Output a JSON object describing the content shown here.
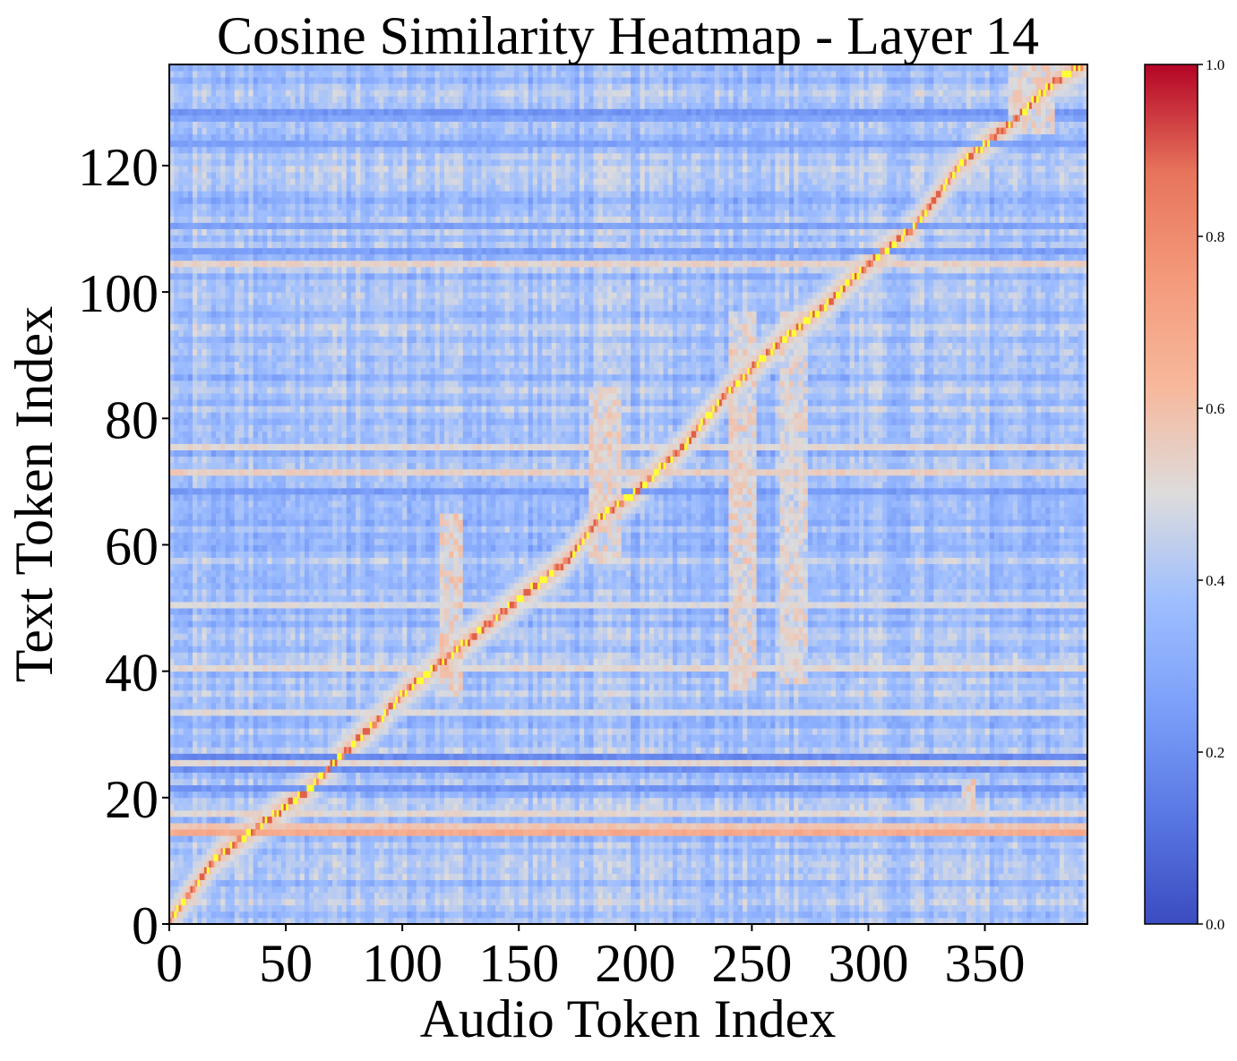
{
  "chart_data": {
    "type": "heatmap",
    "title": "Cosine Similarity Heatmap - Layer 14",
    "xlabel": "Audio Token Index",
    "ylabel": "Text Token Index",
    "x_ticks": [
      0,
      50,
      100,
      150,
      200,
      250,
      300,
      350
    ],
    "y_ticks": [
      0,
      20,
      40,
      60,
      80,
      100,
      120
    ],
    "xlim": [
      0,
      394
    ],
    "ylim": [
      0,
      136
    ],
    "n_audio_tokens": 394,
    "n_text_tokens": 136,
    "colormap": "coolwarm",
    "vmin": 0.0,
    "vmax": 1.0,
    "colorbar_ticks": [
      0.0,
      0.2,
      0.4,
      0.6,
      0.8,
      1.0
    ],
    "colorbar_tick_labels": [
      "0.0",
      "0.2",
      "0.4",
      "0.6",
      "0.8",
      "1.0"
    ],
    "highlight_color": "#ffff33",
    "background_value": 0.38,
    "alignment_path": [
      [
        0,
        0
      ],
      [
        20,
        10
      ],
      [
        38,
        15
      ],
      [
        60,
        21
      ],
      [
        70,
        25
      ],
      [
        90,
        32
      ],
      [
        100,
        36
      ],
      [
        120,
        42
      ],
      [
        150,
        51
      ],
      [
        170,
        57
      ],
      [
        185,
        64
      ],
      [
        200,
        68
      ],
      [
        220,
        75
      ],
      [
        240,
        84
      ],
      [
        260,
        91
      ],
      [
        280,
        97
      ],
      [
        300,
        104
      ],
      [
        320,
        110
      ],
      [
        340,
        120
      ],
      [
        360,
        126
      ],
      [
        380,
        133
      ],
      [
        394,
        136
      ]
    ],
    "row_bands": [
      {
        "row": 14,
        "value": 0.68
      },
      {
        "row": 15,
        "value": 0.58
      },
      {
        "row": 17,
        "value": 0.52
      },
      {
        "row": 21,
        "value": 0.22
      },
      {
        "row": 24,
        "value": 0.2
      },
      {
        "row": 25,
        "value": 0.52
      },
      {
        "row": 26,
        "value": 0.18
      },
      {
        "row": 33,
        "value": 0.5
      },
      {
        "row": 40,
        "value": 0.52
      },
      {
        "row": 50,
        "value": 0.5
      },
      {
        "row": 68,
        "value": 0.24
      },
      {
        "row": 71,
        "value": 0.55
      },
      {
        "row": 75,
        "value": 0.52
      },
      {
        "row": 104,
        "value": 0.54
      },
      {
        "row": 106,
        "value": 0.25
      },
      {
        "row": 110,
        "value": 0.26
      },
      {
        "row": 123,
        "value": 0.26
      },
      {
        "row": 127,
        "value": 0.27
      },
      {
        "row": 128,
        "value": 0.22
      }
    ],
    "warm_blocks": [
      {
        "x": [
          115,
          125
        ],
        "y": [
          36,
          64
        ],
        "value": 0.62
      },
      {
        "x": [
          180,
          192
        ],
        "y": [
          57,
          84
        ],
        "value": 0.6
      },
      {
        "x": [
          240,
          250
        ],
        "y": [
          37,
          96
        ],
        "value": 0.6
      },
      {
        "x": [
          262,
          272
        ],
        "y": [
          38,
          96
        ],
        "value": 0.58
      },
      {
        "x": [
          340,
          345
        ],
        "y": [
          18,
          22
        ],
        "value": 0.62
      },
      {
        "x": [
          360,
          378
        ],
        "y": [
          125,
          135
        ],
        "value": 0.6
      }
    ]
  }
}
